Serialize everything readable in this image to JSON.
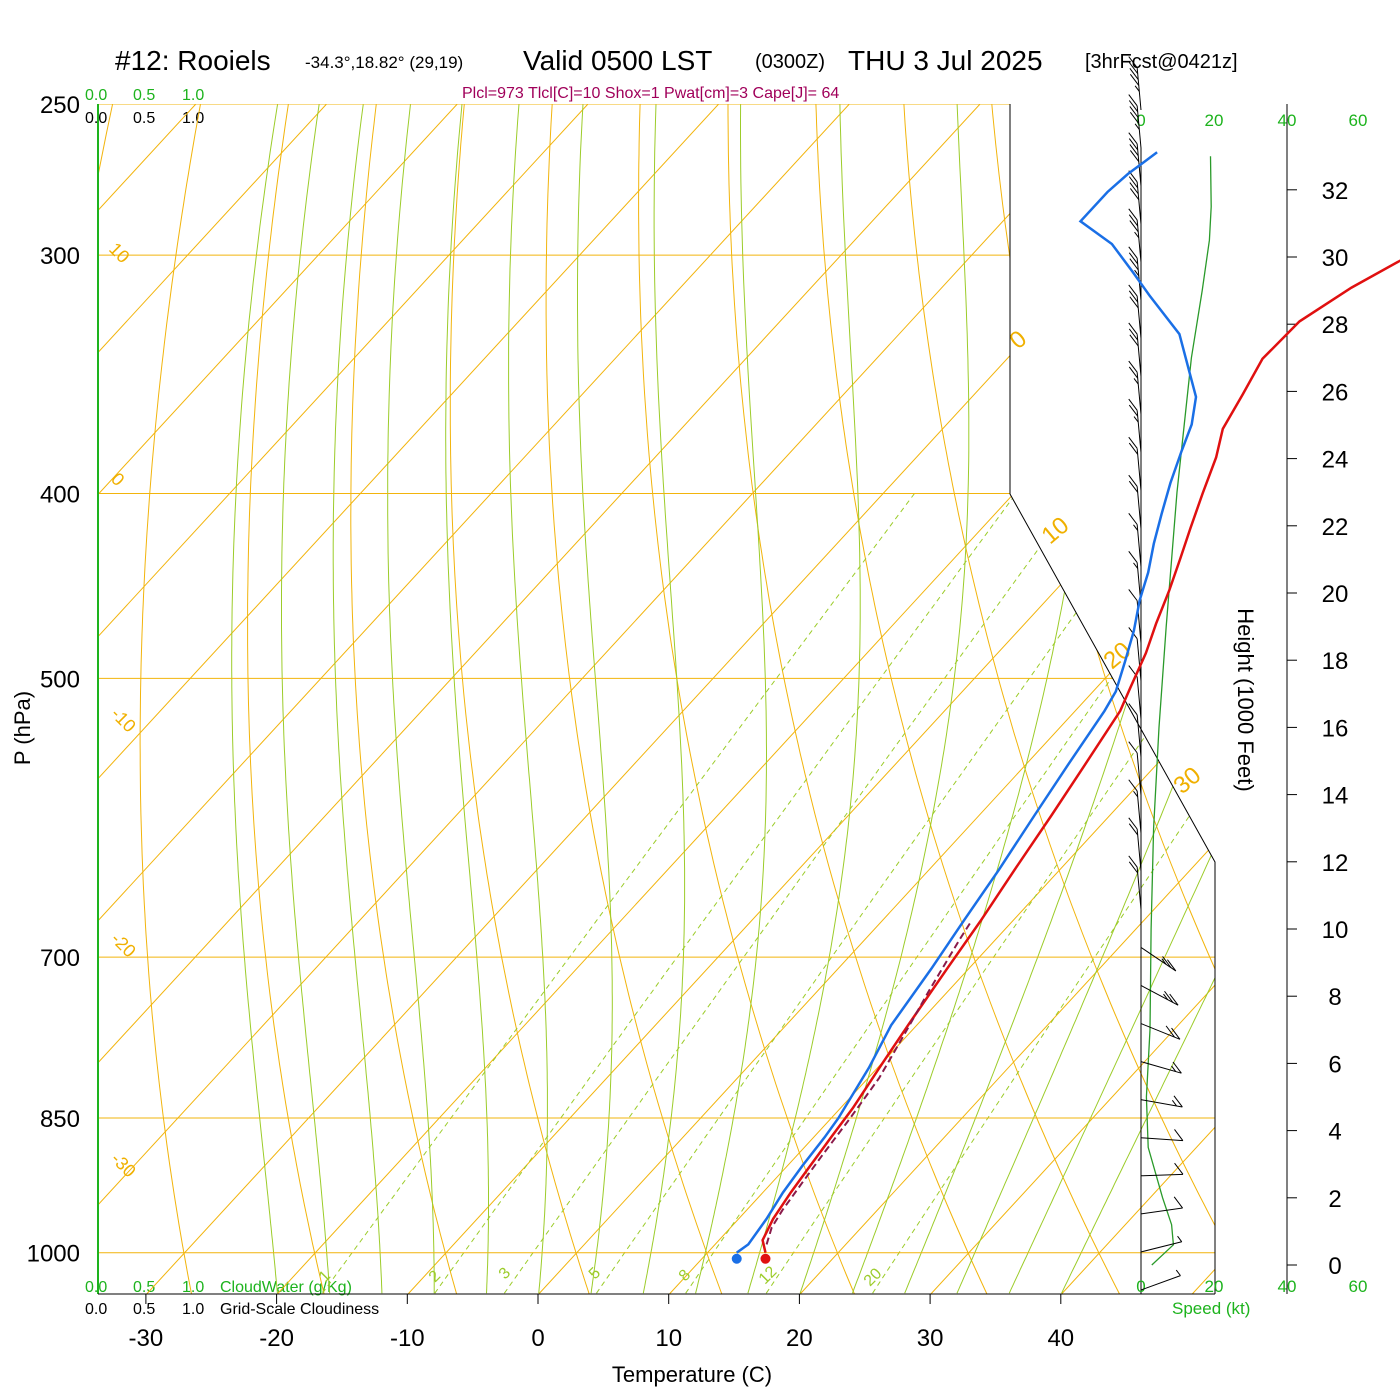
{
  "header": {
    "station": "#12: Rooiels",
    "coords": "-34.3°,18.82° (29,19)",
    "valid_label": "Valid 0500 LST",
    "zulu": "(0300Z)",
    "date": "THU 3 Jul 2025",
    "forecast": "[3hrFcst@0421z]",
    "params": "Plcl=973 Tlcl[C]=10 Shox=1 Pwat[cm]=3 Cape[J]= 64"
  },
  "cloud_scale": {
    "top_green": [
      "0.0",
      "0.5",
      "1.0"
    ],
    "top_black": [
      "0.0",
      "0.5",
      "1.0"
    ],
    "bottom_green": [
      "0.0",
      "0.5",
      "1.0"
    ],
    "bottom_black": [
      "0.0",
      "0.5",
      "1.0"
    ],
    "cloudwater_label": "CloudWater (g/Kg)",
    "cloudiness_label": "Grid-Scale Cloudiness"
  },
  "speed_axis": {
    "label": "Speed (kt)",
    "ticks": [
      "0",
      "20",
      "40",
      "60"
    ]
  },
  "colors": {
    "temperature": "#e01010",
    "dewpoint": "#1a6fe6",
    "parcel": "#8a1a4a",
    "isotherm": "#f2b40c",
    "dry_adiabat": "#f2b40c",
    "moist_adiabat": "#9ccc2a",
    "mixing_ratio": "#9ccc2a",
    "wind_speed": "#2a9a2a",
    "green_text": "#1db31d",
    "param_text": "#a0005a"
  },
  "chart_data": {
    "type": "line",
    "title": "#12: Rooiels  Valid 0500 LST (0300Z) THU 3 Jul 2025",
    "xlabel": "Temperature (C)",
    "ylabel": "P (hPa)",
    "y2label": "Height (1000 Feet)",
    "xlim": [
      -34,
      36
    ],
    "ylim": [
      1050,
      250
    ],
    "y_scale": "log",
    "x_ticks": [
      "-30",
      "-20",
      "-10",
      "0",
      "10",
      "20",
      "30",
      "40"
    ],
    "pressure_ticks": [
      "250",
      "300",
      "400",
      "500",
      "700",
      "850",
      "1000"
    ],
    "height_ticks": [
      "0",
      "2",
      "4",
      "6",
      "8",
      "10",
      "12",
      "14",
      "16",
      "18",
      "20",
      "22",
      "24",
      "26",
      "28",
      "30",
      "32"
    ],
    "dry_adiabat_labels": [
      "10",
      "0",
      "-10",
      "-20",
      "-30"
    ],
    "moist_adiabat_labels": [
      "0",
      "10",
      "20",
      "30"
    ],
    "mixing_ratio_labels": [
      "1",
      "2",
      "3",
      "5",
      "8",
      "12",
      "20"
    ],
    "series": [
      {
        "name": "Temperature",
        "points": [
          [
            14.5,
            1000
          ],
          [
            13.4,
            985
          ],
          [
            12.7,
            960
          ],
          [
            12.2,
            930
          ],
          [
            11.8,
            900
          ],
          [
            11.4,
            870
          ],
          [
            11.0,
            840
          ],
          [
            10.2,
            800
          ],
          [
            9.4,
            760
          ],
          [
            8.4,
            710
          ],
          [
            7.6,
            670
          ],
          [
            6.6,
            630
          ],
          [
            5.6,
            590
          ],
          [
            4.6,
            555
          ],
          [
            3.5,
            520
          ],
          [
            2.6,
            505
          ],
          [
            1.4,
            485
          ],
          [
            0.1,
            468
          ],
          [
            -1.2,
            450
          ],
          [
            -2.6,
            433
          ],
          [
            -4.0,
            417
          ],
          [
            -5.5,
            400
          ],
          [
            -7.0,
            383
          ],
          [
            -8.5,
            370
          ],
          [
            -9.4,
            355
          ],
          [
            -10.4,
            340
          ],
          [
            -10.2,
            325
          ],
          [
            -8.6,
            312
          ],
          [
            -6.4,
            300
          ],
          [
            -4.4,
            285
          ],
          [
            -2.6,
            270
          ]
        ]
      },
      {
        "name": "Dewpoint",
        "points": [
          [
            12.3,
            1000
          ],
          [
            12.6,
            990
          ],
          [
            12.2,
            960
          ],
          [
            11.6,
            930
          ],
          [
            11.2,
            900
          ],
          [
            10.9,
            870
          ],
          [
            10.6,
            850
          ],
          [
            9.4,
            800
          ],
          [
            8.1,
            760
          ],
          [
            7.2,
            710
          ],
          [
            6.3,
            670
          ],
          [
            5.4,
            630
          ],
          [
            4.3,
            590
          ],
          [
            3.3,
            555
          ],
          [
            2.3,
            520
          ],
          [
            1.8,
            508
          ],
          [
            0.4,
            490
          ],
          [
            -1.1,
            472
          ],
          [
            -2.8,
            455
          ],
          [
            -4.1,
            440
          ],
          [
            -5.7,
            425
          ],
          [
            -7.2,
            410
          ],
          [
            -8.7,
            395
          ],
          [
            -10.1,
            380
          ],
          [
            -11.2,
            368
          ],
          [
            -12.8,
            356
          ],
          [
            -18.5,
            330
          ],
          [
            -23.5,
            315
          ],
          [
            -26.5,
            306
          ],
          [
            -30.0,
            296
          ],
          [
            -34.0,
            288
          ],
          [
            -34.0,
            278
          ],
          [
            -33.7,
            272
          ],
          [
            -33.0,
            265
          ]
        ]
      },
      {
        "name": "Parcel",
        "points": [
          [
            14.0,
            990
          ],
          [
            13.2,
            970
          ],
          [
            12.8,
            950
          ],
          [
            12.4,
            920
          ],
          [
            12.0,
            890
          ],
          [
            11.5,
            850
          ],
          [
            10.9,
            810
          ],
          [
            9.8,
            770
          ],
          [
            8.6,
            730
          ],
          [
            7.3,
            685
          ],
          [
            6.9,
            670
          ]
        ]
      },
      {
        "name": "Wind speed",
        "points": [
          [
            3,
            0
          ],
          [
            9,
            0.6
          ],
          [
            8.5,
            1.2
          ],
          [
            6,
            2
          ],
          [
            2,
            3.5
          ],
          [
            1.5,
            5
          ],
          [
            2.5,
            7
          ],
          [
            2.8,
            10
          ],
          [
            3.5,
            13
          ],
          [
            5,
            16
          ],
          [
            7,
            19
          ],
          [
            8.5,
            21
          ],
          [
            10,
            23
          ],
          [
            12,
            25
          ],
          [
            14,
            27
          ],
          [
            17,
            29
          ],
          [
            19,
            30.5
          ],
          [
            19.5,
            31.5
          ],
          [
            19.3,
            33
          ]
        ]
      }
    ],
    "surface_markers": [
      {
        "name": "Temperature",
        "x": 14.5,
        "p": 1000
      },
      {
        "name": "Dewpoint",
        "x": 12.3,
        "p": 1000
      }
    ],
    "wind_barbs_kt": [
      5,
      5,
      10,
      10,
      10,
      15,
      15,
      20,
      25,
      25,
      20,
      20,
      15,
      10,
      10,
      10,
      10,
      10,
      15,
      15,
      20,
      20,
      25,
      25,
      30,
      30,
      35,
      35,
      40,
      40,
      45,
      45
    ]
  }
}
